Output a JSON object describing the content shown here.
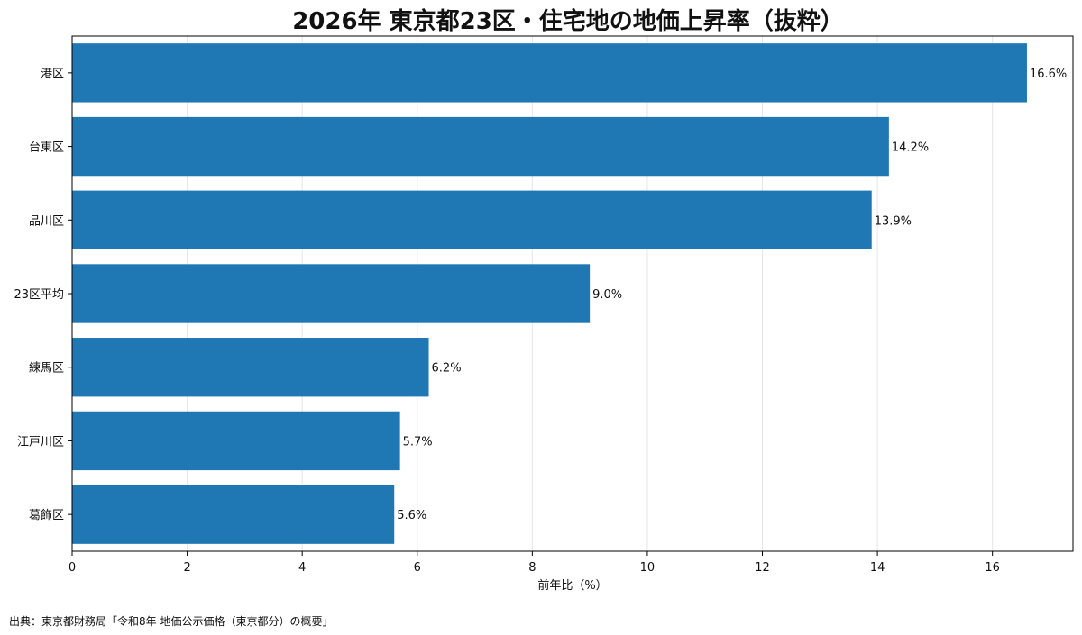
{
  "chart_data": {
    "type": "bar",
    "orientation": "horizontal",
    "title": "2026年 東京都23区・住宅地の地価上昇率（抜粋）",
    "xlabel": "前年比（%）",
    "ylabel": "",
    "xlim": [
      0,
      17.4
    ],
    "xticks": [
      0,
      2,
      4,
      6,
      8,
      10,
      12,
      14,
      16
    ],
    "grid": "vertical",
    "categories": [
      "港区",
      "台東区",
      "品川区",
      "23区平均",
      "練馬区",
      "江戸川区",
      "葛飾区"
    ],
    "values": [
      16.6,
      14.2,
      13.9,
      9.0,
      6.2,
      5.7,
      5.6
    ],
    "data_labels": [
      "16.6%",
      "14.2%",
      "13.9%",
      "9.0%",
      "6.2%",
      "5.7%",
      "5.6%"
    ],
    "bar_color": "#1f77b4"
  },
  "source": "出典：東京都財務局「令和8年 地価公示価格（東京都分）の概要」"
}
